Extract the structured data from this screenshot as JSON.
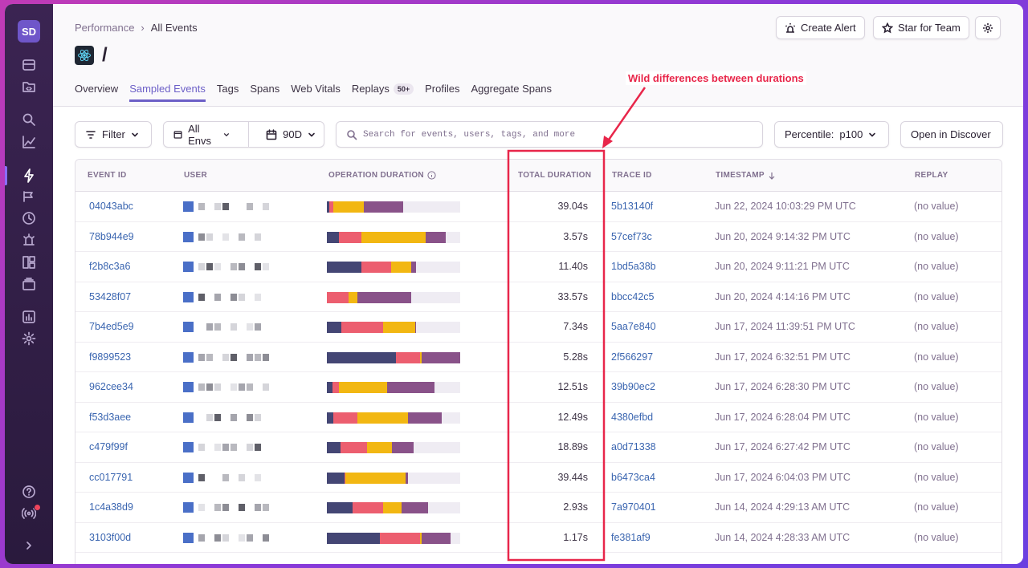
{
  "sidebar": {
    "org_initials": "SD",
    "icons": [
      "issues-icon",
      "projects-icon",
      "search-icon",
      "insights-icon",
      "performance-icon",
      "releases-icon",
      "crons-icon",
      "alerts-icon",
      "dashboards-icon",
      "stats-icon",
      "settings-icon",
      "help-icon",
      "broadcast-icon",
      "collapse-icon"
    ]
  },
  "header": {
    "breadcrumb": [
      "Performance",
      "All Events"
    ],
    "transaction_name": "/",
    "create_alert": "Create Alert",
    "star_for_team": "Star for Team"
  },
  "tabs": [
    {
      "label": "Overview"
    },
    {
      "label": "Sampled Events",
      "active": true
    },
    {
      "label": "Tags"
    },
    {
      "label": "Spans"
    },
    {
      "label": "Web Vitals"
    },
    {
      "label": "Replays",
      "badge": "50+"
    },
    {
      "label": "Profiles"
    },
    {
      "label": "Aggregate Spans"
    }
  ],
  "annotation": {
    "label": "Wild differences between durations",
    "color": "#e8264a"
  },
  "filters": {
    "filter_label": "Filter",
    "env_label": "All Envs",
    "date_label": "90D",
    "search_placeholder": "Search for events, users, tags, and more",
    "percentile_label": "Percentile:",
    "percentile_value": "p100",
    "open_discover": "Open in Discover"
  },
  "table": {
    "columns": [
      "EVENT ID",
      "USER",
      "OPERATION DURATION",
      "TOTAL DURATION",
      "TRACE ID",
      "TIMESTAMP",
      "REPLAY"
    ],
    "op_colors": [
      "#444674",
      "#ec5e6f",
      "#f2b712",
      "#895289"
    ],
    "rows": [
      {
        "event_id": "04043abc",
        "total": "39.04s",
        "trace": "5b13140f",
        "timestamp": "Jun 22, 2024 10:03:29 PM UTC",
        "replay": "(no value)",
        "ops": [
          0.02,
          0.03,
          0.23,
          0.29
        ]
      },
      {
        "event_id": "78b944e9",
        "total": "3.57s",
        "trace": "57cef73c",
        "timestamp": "Jun 20, 2024 9:14:32 PM UTC",
        "replay": "(no value)",
        "ops": [
          0.09,
          0.17,
          0.48,
          0.15
        ]
      },
      {
        "event_id": "f2b8c3a6",
        "total": "11.40s",
        "trace": "1bd5a38b",
        "timestamp": "Jun 20, 2024 9:11:21 PM UTC",
        "replay": "(no value)",
        "ops": [
          0.26,
          0.22,
          0.15,
          0.04
        ]
      },
      {
        "event_id": "53428f07",
        "total": "33.57s",
        "trace": "bbcc42c5",
        "timestamp": "Jun 20, 2024 4:14:16 PM UTC",
        "replay": "(no value)",
        "ops": [
          0.0,
          0.16,
          0.07,
          0.4
        ]
      },
      {
        "event_id": "7b4ed5e9",
        "total": "7.34s",
        "trace": "5aa7e840",
        "timestamp": "Jun 17, 2024 11:39:51 PM UTC",
        "replay": "(no value)",
        "ops": [
          0.11,
          0.31,
          0.24,
          0.01
        ]
      },
      {
        "event_id": "f9899523",
        "total": "5.28s",
        "trace": "2f566297",
        "timestamp": "Jun 17, 2024 6:32:51 PM UTC",
        "replay": "(no value)",
        "ops": [
          0.52,
          0.18,
          0.01,
          0.29
        ]
      },
      {
        "event_id": "962cee34",
        "total": "12.51s",
        "trace": "39b90ec2",
        "timestamp": "Jun 17, 2024 6:28:30 PM UTC",
        "replay": "(no value)",
        "ops": [
          0.04,
          0.05,
          0.36,
          0.36
        ]
      },
      {
        "event_id": "f53d3aee",
        "total": "12.49s",
        "trace": "4380efbd",
        "timestamp": "Jun 17, 2024 6:28:04 PM UTC",
        "replay": "(no value)",
        "ops": [
          0.05,
          0.18,
          0.38,
          0.25
        ]
      },
      {
        "event_id": "c479f99f",
        "total": "18.89s",
        "trace": "a0d71338",
        "timestamp": "Jun 17, 2024 6:27:42 PM UTC",
        "replay": "(no value)",
        "ops": [
          0.1,
          0.2,
          0.19,
          0.16
        ]
      },
      {
        "event_id": "cc017791",
        "total": "39.44s",
        "trace": "b6473ca4",
        "timestamp": "Jun 17, 2024 6:04:03 PM UTC",
        "replay": "(no value)",
        "ops": [
          0.13,
          0.01,
          0.45,
          0.02
        ]
      },
      {
        "event_id": "1c4a38d9",
        "total": "2.93s",
        "trace": "7a970401",
        "timestamp": "Jun 14, 2024 4:29:13 AM UTC",
        "replay": "(no value)",
        "ops": [
          0.19,
          0.23,
          0.14,
          0.2
        ]
      },
      {
        "event_id": "3103f00d",
        "total": "1.17s",
        "trace": "fe381af9",
        "timestamp": "Jun 14, 2024 4:28:33 AM UTC",
        "replay": "(no value)",
        "ops": [
          0.4,
          0.3,
          0.01,
          0.22
        ]
      }
    ]
  }
}
